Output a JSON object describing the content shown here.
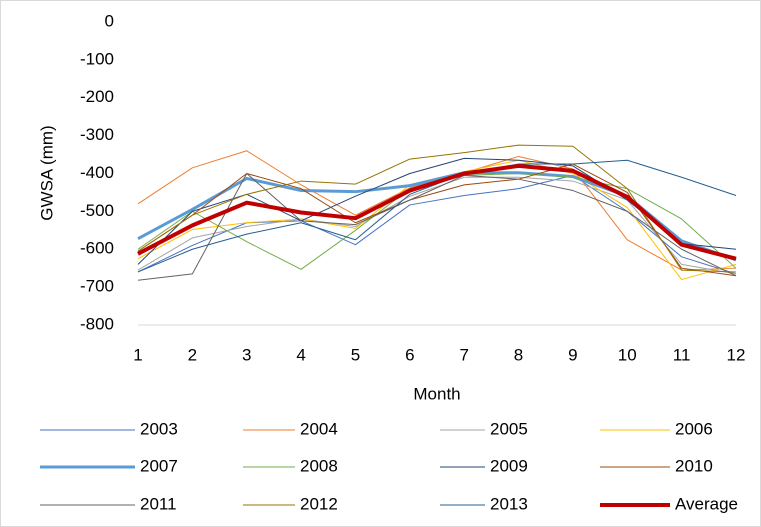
{
  "chart_data": {
    "type": "line",
    "x_label": "Month",
    "y_label": "GWSA  (mm)",
    "x": [
      1,
      2,
      3,
      4,
      5,
      6,
      7,
      8,
      9,
      10,
      11,
      12
    ],
    "xlim": [
      1,
      12
    ],
    "xticks": [
      1,
      2,
      3,
      4,
      5,
      6,
      7,
      8,
      9,
      10,
      11,
      12
    ],
    "ylim": [
      -800,
      0
    ],
    "yticks": [
      0,
      -100,
      -200,
      -300,
      -400,
      -500,
      -600,
      -700,
      -800
    ],
    "grid": false,
    "legend": "bottom",
    "series": [
      {
        "name": "2003",
        "color": "#4472c4",
        "line_width": 1,
        "values": [
          -660,
          -590,
          -530,
          -525,
          -588,
          -483,
          -458,
          -440,
          -405,
          -500,
          -620,
          -665
        ]
      },
      {
        "name": "2004",
        "color": "#ed7d31",
        "line_width": 1,
        "values": [
          -480,
          -385,
          -340,
          -430,
          -510,
          -438,
          -398,
          -355,
          -388,
          -575,
          -655,
          -650
        ]
      },
      {
        "name": "2005",
        "color": "#a5a5a5",
        "line_width": 1,
        "values": [
          -655,
          -570,
          -540,
          -520,
          -540,
          -460,
          -410,
          -410,
          -420,
          -470,
          -640,
          -665
        ]
      },
      {
        "name": "2006",
        "color": "#ffc000",
        "line_width": 1,
        "values": [
          -625,
          -548,
          -530,
          -520,
          -545,
          -430,
          -395,
          -365,
          -400,
          -490,
          -680,
          -640
        ]
      },
      {
        "name": "2007",
        "color": "#5b9bd5",
        "line_width": 3,
        "values": [
          -572,
          -495,
          -413,
          -445,
          -448,
          -432,
          -398,
          -398,
          -408,
          -460,
          -578,
          -628
        ]
      },
      {
        "name": "2008",
        "color": "#70ad47",
        "line_width": 1,
        "values": [
          -600,
          -500,
          -580,
          -653,
          -550,
          -440,
          -405,
          -400,
          -410,
          -440,
          -520,
          -650
        ]
      },
      {
        "name": "2009",
        "color": "#264478",
        "line_width": 1,
        "values": [
          -640,
          -500,
          -455,
          -525,
          -460,
          -400,
          -360,
          -365,
          -380,
          -470,
          -585,
          -600
        ]
      },
      {
        "name": "2010",
        "color": "#9e480e",
        "line_width": 1,
        "values": [
          -605,
          -510,
          -400,
          -440,
          -530,
          -470,
          -430,
          -415,
          -375,
          -450,
          -650,
          -670
        ]
      },
      {
        "name": "2011",
        "color": "#636363",
        "line_width": 1,
        "values": [
          -682,
          -665,
          -400,
          -525,
          -535,
          -470,
          -405,
          -415,
          -445,
          -500,
          -600,
          -670
        ]
      },
      {
        "name": "2012",
        "color": "#997300",
        "line_width": 1,
        "values": [
          -605,
          -510,
          -455,
          -420,
          -428,
          -362,
          -345,
          -325,
          -328,
          -440,
          -655,
          -660
        ]
      },
      {
        "name": "2013",
        "color": "#255e91",
        "line_width": 1,
        "values": [
          -660,
          -600,
          -560,
          -530,
          -575,
          -455,
          -400,
          -375,
          -375,
          -365,
          -410,
          -458
        ]
      },
      {
        "name": "Average",
        "color": "#c00000",
        "line_width": 4,
        "values": [
          -612,
          -537,
          -477,
          -503,
          -518,
          -445,
          -400,
          -380,
          -393,
          -462,
          -588,
          -625
        ]
      }
    ]
  }
}
